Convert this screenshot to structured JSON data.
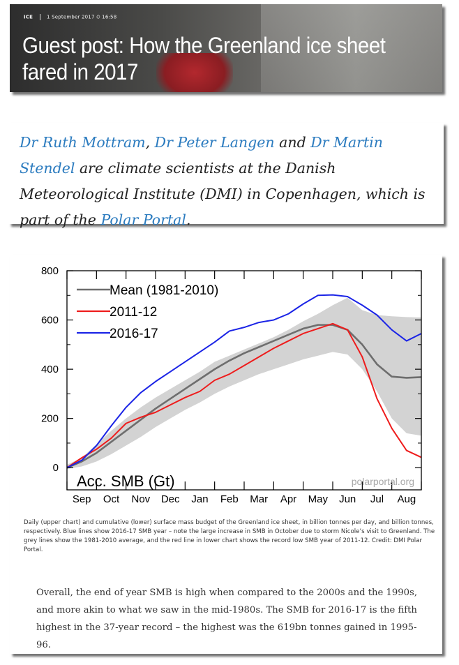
{
  "header": {
    "category": "ICE",
    "date": "1 September 2017",
    "time": "16:58",
    "title": "Guest post: How the Greenland ice sheet fared in 2017"
  },
  "intro": {
    "author1": "Dr Ruth Mottram",
    "sep1": ", ",
    "author2": "Dr Peter Langen",
    "sep2": " and ",
    "author3": "Dr Martin Stendel",
    "text": " are climate scientists at the Danish Meteorological Institute (DMI) in Copenhagen, which is part of the ",
    "link": "Polar Portal",
    "end": "."
  },
  "chart_data": {
    "type": "line",
    "title": "",
    "inner_label": "Acc. SMB (Gt)",
    "watermark": "polarportal.org",
    "xlabel": "",
    "ylabel": "",
    "categories": [
      "Sep",
      "Oct",
      "Nov",
      "Dec",
      "Jan",
      "Feb",
      "Mar",
      "Apr",
      "May",
      "Jun",
      "Jul",
      "Aug"
    ],
    "yticks": [
      0,
      200,
      400,
      600,
      800
    ],
    "ylim": [
      -90,
      800
    ],
    "xlim": [
      0,
      12
    ],
    "legend_position": "top-left",
    "band": {
      "x": [
        0,
        0.5,
        1,
        1.5,
        2,
        2.5,
        3,
        3.5,
        4,
        4.5,
        5,
        5.5,
        6,
        6.5,
        7,
        7.5,
        8,
        8.5,
        9,
        9.5,
        10,
        10.5,
        11,
        11.5,
        12
      ],
      "upper": [
        12,
        40,
        95,
        150,
        200,
        245,
        285,
        320,
        355,
        390,
        430,
        455,
        480,
        505,
        530,
        560,
        595,
        625,
        660,
        690,
        640,
        620,
        615,
        612,
        610
      ],
      "lower": [
        -5,
        5,
        25,
        55,
        90,
        125,
        165,
        200,
        235,
        265,
        300,
        330,
        355,
        380,
        400,
        420,
        440,
        455,
        470,
        460,
        400,
        310,
        200,
        140,
        130
      ]
    },
    "series": [
      {
        "name": "Mean (1981-2010)",
        "color": "#6e6e6e",
        "x": [
          0,
          0.5,
          1,
          1.5,
          2,
          2.5,
          3,
          3.5,
          4,
          4.5,
          5,
          5.5,
          6,
          6.5,
          7,
          7.5,
          8,
          8.5,
          9,
          9.5,
          10,
          10.5,
          11,
          11.5,
          12
        ],
        "y": [
          0,
          25,
          60,
          105,
          150,
          195,
          240,
          280,
          320,
          360,
          400,
          435,
          465,
          490,
          515,
          540,
          565,
          580,
          580,
          560,
          500,
          420,
          370,
          365,
          368
        ]
      },
      {
        "name": "2011-12",
        "color": "#ee1c1c",
        "x": [
          0,
          0.5,
          1,
          1.5,
          2,
          2.5,
          3,
          3.5,
          4,
          4.5,
          5,
          5.5,
          6,
          6.5,
          7,
          7.5,
          8,
          8.5,
          9,
          9.5,
          10,
          10.5,
          11,
          11.5,
          12
        ],
        "y": [
          0,
          40,
          75,
          120,
          180,
          205,
          225,
          255,
          285,
          310,
          355,
          380,
          415,
          450,
          485,
          515,
          545,
          565,
          585,
          560,
          450,
          280,
          160,
          70,
          42
        ]
      },
      {
        "name": "2016-17",
        "color": "#1b24e6",
        "x": [
          0,
          0.5,
          1,
          1.5,
          2,
          2.5,
          3,
          3.5,
          4,
          4.5,
          5,
          5.5,
          6,
          6.5,
          7,
          7.5,
          8,
          8.5,
          9,
          9.5,
          10,
          10.5,
          11,
          11.5,
          12
        ],
        "y": [
          0,
          30,
          90,
          170,
          245,
          305,
          350,
          390,
          430,
          470,
          510,
          555,
          570,
          590,
          600,
          625,
          665,
          700,
          702,
          695,
          660,
          620,
          560,
          515,
          545
        ]
      }
    ]
  },
  "caption": "Daily (upper chart) and cumulative (lower) surface mass budget of the Greenland ice sheet, in billion tonnes per day, and billion tonnes, respectively. Blue lines show 2016-17 SMB year – note the large increase in SMB in October due to storm Nicole’s visit to Greenland. The grey lines show the 1981-2010 average, and the red line in lower chart shows the record low SMB year of 2011-12. Credit: DMI Polar Portal.",
  "body": "Overall, the end of year SMB is high when compared to the 2000s and the 1990s, and more akin to what we saw in the mid-1980s. The SMB for 2016-17 is the fifth highest in the 37-year record – the highest was the 619bn tonnes gained in 1995-96."
}
